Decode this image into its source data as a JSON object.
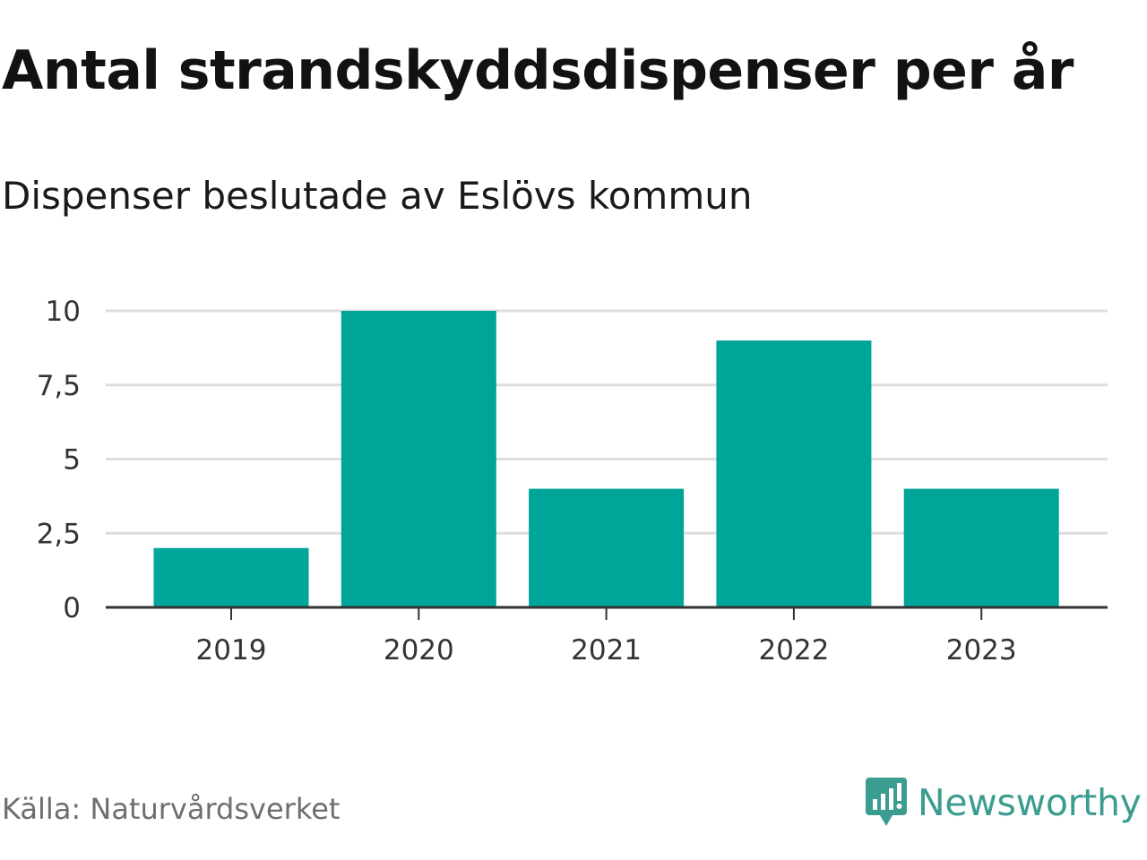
{
  "title": "Antal strandskyddsdispenser per år",
  "subtitle": "Dispenser beslutade av Eslövs kommun",
  "source": "Källa: Naturvårdsverket",
  "brand": {
    "name": "Newsworthy",
    "color": "#3a9d8f"
  },
  "colors": {
    "bar": "#00a59a",
    "grid": "#dddddd",
    "axis": "#333333"
  },
  "chart_data": {
    "type": "bar",
    "categories": [
      "2019",
      "2020",
      "2021",
      "2022",
      "2023"
    ],
    "values": [
      2,
      10,
      4,
      9,
      4
    ],
    "ylim": [
      0,
      10
    ],
    "yticks": [
      0,
      2.5,
      5,
      7.5,
      10
    ],
    "ytick_labels": [
      "0",
      "2,5",
      "5",
      "7,5",
      "10"
    ],
    "xlabel": "",
    "ylabel": "",
    "grid": true
  }
}
